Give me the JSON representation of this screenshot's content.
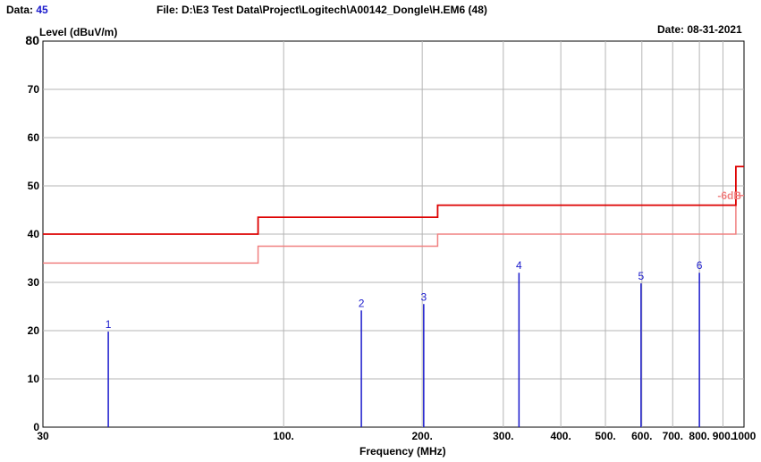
{
  "header": {
    "data_label": "Data:",
    "data_value": "45",
    "file_path": "File: D:\\E3 Test Data\\Project\\Logitech\\A00142_Dongle\\H.EM6  (48)",
    "date": "Date: 08-31-2021"
  },
  "chart_data": {
    "type": "line",
    "xscale": "log",
    "xlim": [
      30,
      1000
    ],
    "ylim": [
      0,
      80
    ],
    "ylabel": "Level (dBuV/m)",
    "xlabel": "Frequency (MHz)",
    "x_ticks": [
      {
        "value": 30,
        "label": "30"
      },
      {
        "value": 100,
        "label": "100."
      },
      {
        "value": 200,
        "label": "200."
      },
      {
        "value": 300,
        "label": "300."
      },
      {
        "value": 400,
        "label": "400."
      },
      {
        "value": 500,
        "label": "500."
      },
      {
        "value": 600,
        "label": "600."
      },
      {
        "value": 700,
        "label": "700."
      },
      {
        "value": 800,
        "label": "800."
      },
      {
        "value": 900,
        "label": "900."
      },
      {
        "value": 1000,
        "label": "1000"
      }
    ],
    "y_ticks": [
      0,
      10,
      20,
      30,
      40,
      50,
      60,
      70,
      80
    ],
    "grid": true,
    "limit_line": {
      "color": "#dd0000",
      "steps": [
        {
          "x0": 30,
          "x1": 88,
          "y": 40
        },
        {
          "x0": 88,
          "x1": 216,
          "y": 43.5
        },
        {
          "x0": 216,
          "x1": 960,
          "y": 46
        },
        {
          "x0": 960,
          "x1": 1000,
          "y": 54
        }
      ]
    },
    "margin_line": {
      "label": "-6dB",
      "color": "#f08080",
      "steps": [
        {
          "x0": 30,
          "x1": 88,
          "y": 34
        },
        {
          "x0": 88,
          "x1": 216,
          "y": 37.5
        },
        {
          "x0": 216,
          "x1": 960,
          "y": 40
        },
        {
          "x0": 960,
          "x1": 1000,
          "y": 48
        }
      ]
    },
    "markers": [
      {
        "label": "1",
        "x": 41.6,
        "y": 19.8
      },
      {
        "label": "2",
        "x": 147.5,
        "y": 24.2
      },
      {
        "label": "3",
        "x": 201.5,
        "y": 25.5
      },
      {
        "label": "4",
        "x": 324.5,
        "y": 32.0
      },
      {
        "label": "5",
        "x": 597.5,
        "y": 29.8
      },
      {
        "label": "6",
        "x": 800.0,
        "y": 32.0
      }
    ],
    "marker_color": "#1a1acc"
  }
}
